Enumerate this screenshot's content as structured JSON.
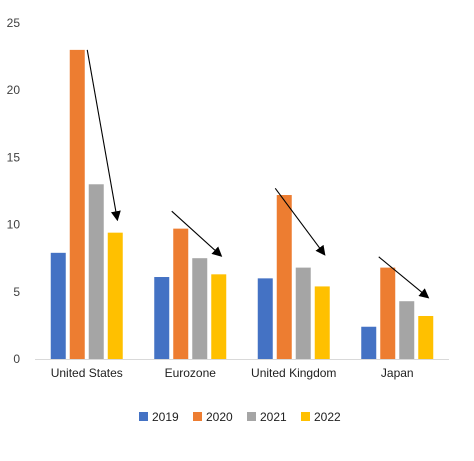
{
  "chart_data": {
    "type": "bar",
    "title": "",
    "xlabel": "",
    "ylabel": "",
    "categories": [
      "United States",
      "Eurozone",
      "United Kingdom",
      "Japan"
    ],
    "series": [
      {
        "name": "2019",
        "values": [
          7.9,
          6.1,
          6.0,
          2.4
        ],
        "color": "#4472C4"
      },
      {
        "name": "2020",
        "values": [
          23.0,
          9.7,
          12.2,
          6.8
        ],
        "color": "#ED7D31"
      },
      {
        "name": "2021",
        "values": [
          13.0,
          7.5,
          6.8,
          4.3
        ],
        "color": "#A5A5A5"
      },
      {
        "name": "2022",
        "values": [
          9.4,
          6.3,
          5.4,
          3.2
        ],
        "color": "#FFC000"
      }
    ],
    "ylim": [
      0,
      25
    ],
    "yticks": [
      0,
      5,
      10,
      15,
      20,
      25
    ],
    "grid": false,
    "legend_position": "bottom",
    "annotations": [
      {
        "type": "arrow",
        "category": "United States",
        "from": {
          "series": "2020",
          "y": 23.0
        },
        "to": {
          "series": "2022",
          "y": 10.4
        }
      },
      {
        "type": "arrow",
        "category": "Eurozone",
        "from": {
          "series": "2019",
          "y": 11.0
        },
        "to": {
          "series": "2022",
          "y": 7.7
        }
      },
      {
        "type": "arrow",
        "category": "United Kingdom",
        "from": {
          "series": "2019",
          "y": 12.7
        },
        "to": {
          "series": "2022",
          "y": 7.8
        }
      },
      {
        "type": "arrow",
        "category": "Japan",
        "from": {
          "series": "2019",
          "y": 7.6
        },
        "to": {
          "series": "2022",
          "y": 4.6
        }
      }
    ]
  }
}
